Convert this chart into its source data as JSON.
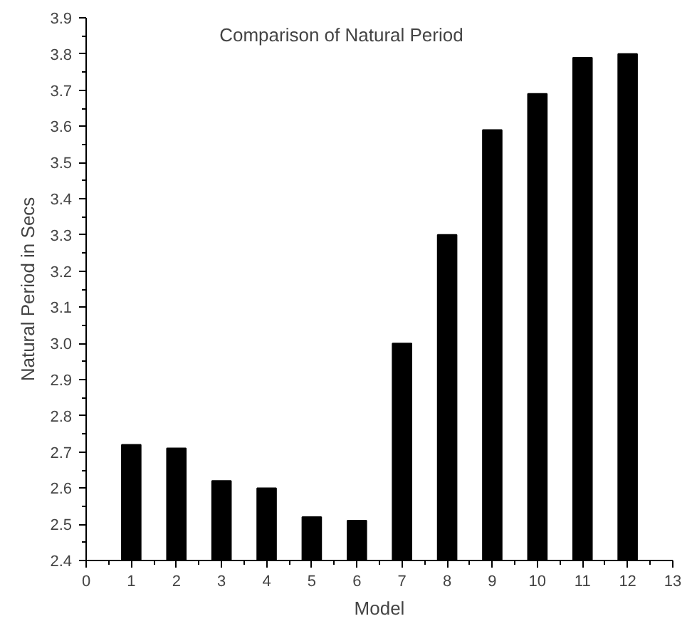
{
  "chart_data": {
    "type": "bar",
    "title": "Comparison of Natural Period",
    "xlabel": "Model",
    "ylabel": "Natural Period in Secs",
    "x": [
      1,
      2,
      3,
      4,
      5,
      6,
      7,
      8,
      9,
      10,
      11,
      12
    ],
    "values": [
      2.72,
      2.71,
      2.62,
      2.6,
      2.52,
      2.51,
      3.0,
      3.3,
      3.59,
      3.69,
      3.79,
      3.8
    ],
    "color": "#000000",
    "xlim": [
      0,
      13
    ],
    "xticks": [
      0,
      1,
      2,
      3,
      4,
      5,
      6,
      7,
      8,
      9,
      10,
      11,
      12,
      13
    ],
    "ylim": [
      2.4,
      3.9
    ],
    "yticks": [
      {
        "value": 2.4,
        "label": "2.4"
      },
      {
        "value": 2.5,
        "label": "2.5"
      },
      {
        "value": 2.6,
        "label": "2.6"
      },
      {
        "value": 2.7,
        "label": "2.7"
      },
      {
        "value": 2.8,
        "label": "2.8"
      },
      {
        "value": 2.9,
        "label": "2.9"
      },
      {
        "value": 3.0,
        "label": "3.0"
      },
      {
        "value": 3.1,
        "label": "3.1"
      },
      {
        "value": 3.2,
        "label": "3.2"
      },
      {
        "value": 3.3,
        "label": "3.3"
      },
      {
        "value": 3.4,
        "label": "3.4"
      },
      {
        "value": 3.5,
        "label": "3.5"
      },
      {
        "value": 3.6,
        "label": "3.6"
      },
      {
        "value": 3.7,
        "label": "3.7"
      },
      {
        "value": 3.8,
        "label": "3.8"
      },
      {
        "value": 3.9,
        "label": "3.9"
      }
    ],
    "grid": false
  }
}
